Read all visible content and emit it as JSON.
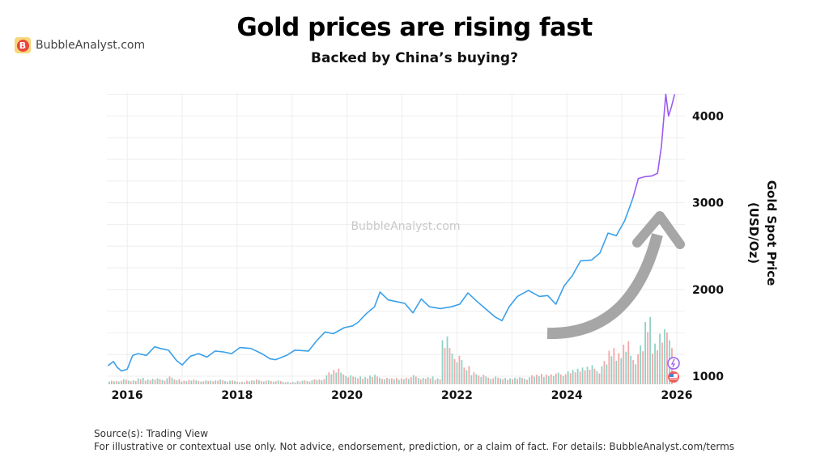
{
  "header": {
    "title": "Gold prices are rising fast",
    "subtitle": "Backed by China’s buying?"
  },
  "logo": {
    "text": "BubbleAnalyst.com",
    "letter": "B"
  },
  "watermark": "BubbleAnalyst.com",
  "footer": {
    "source": "Source(s): Trading View",
    "disclaimer": "For illustrative or contextual use only. Not advice, endorsement, prediction, or a claim of fact. For details: BubbleAnalyst.com/terms"
  },
  "chart_data": {
    "type": "line",
    "title": "Gold prices are rising fast",
    "ylabel_line1": "Gold Spot Price",
    "ylabel_line2": "(USD/Oz)",
    "xlim": [
      2015.63,
      2026.0
    ],
    "ylim": [
      900,
      4300
    ],
    "x_ticks": [
      "2016",
      "2018",
      "2020",
      "2022",
      "2024",
      "2026"
    ],
    "y_ticks": [
      "1000",
      "2000",
      "3000",
      "4000"
    ],
    "grid": true,
    "colors": {
      "line": "#3aa0ea",
      "line_recent": "#9b5cf0",
      "vol_up": "#8fd3c6",
      "vol_down": "#f4a7a7",
      "arrow": "#a6a6a6",
      "grid": "#eeeeee"
    },
    "recent_color_from": 2025.2,
    "series": [
      {
        "x": [
          2015.65,
          2015.75,
          2015.82,
          2015.9,
          2016.0,
          2016.1,
          2016.2,
          2016.35,
          2016.5,
          2016.6,
          2016.75,
          2016.9,
          2017.0,
          2017.15,
          2017.3,
          2017.45,
          2017.6,
          2017.75,
          2017.9,
          2018.05,
          2018.25,
          2018.45,
          2018.6,
          2018.7,
          2018.9,
          2019.05,
          2019.3,
          2019.45,
          2019.6,
          2019.75,
          2019.95,
          2020.1,
          2020.2,
          2020.35,
          2020.5,
          2020.6,
          2020.75,
          2020.9,
          2021.05,
          2021.2,
          2021.35,
          2021.5,
          2021.7,
          2021.9,
          2022.05,
          2022.2,
          2022.35,
          2022.55,
          2022.7,
          2022.82,
          2022.95,
          2023.1,
          2023.3,
          2023.5,
          2023.65,
          2023.8,
          2023.95,
          2024.1,
          2024.25,
          2024.45,
          2024.6,
          2024.75,
          2024.9,
          2025.05,
          2025.2,
          2025.3,
          2025.42,
          2025.55,
          2025.65,
          2025.72,
          2025.8,
          2025.85,
          2025.9,
          2025.96
        ],
        "y": [
          1120,
          1170,
          1100,
          1060,
          1080,
          1240,
          1260,
          1240,
          1340,
          1320,
          1300,
          1180,
          1130,
          1230,
          1260,
          1220,
          1290,
          1280,
          1260,
          1330,
          1320,
          1260,
          1200,
          1190,
          1240,
          1300,
          1290,
          1410,
          1510,
          1490,
          1560,
          1580,
          1620,
          1720,
          1800,
          1970,
          1880,
          1860,
          1840,
          1730,
          1890,
          1800,
          1780,
          1800,
          1830,
          1960,
          1870,
          1760,
          1680,
          1640,
          1800,
          1920,
          1990,
          1920,
          1930,
          1830,
          2040,
          2160,
          2330,
          2340,
          2420,
          2650,
          2620,
          2790,
          3050,
          3280,
          3300,
          3310,
          3340,
          3650,
          4250,
          4000,
          4100,
          4250
        ]
      }
    ],
    "volume_relative": [
      3,
      3,
      4,
      3,
      5,
      4,
      5,
      4,
      6,
      4,
      3,
      4,
      3,
      3,
      3,
      4,
      3,
      3,
      2,
      3,
      4,
      3,
      3,
      3,
      2,
      2,
      3,
      3,
      4,
      4,
      10,
      13,
      9,
      7,
      6,
      6,
      8,
      6,
      5,
      5,
      5,
      6,
      7,
      5,
      6,
      5,
      40,
      28,
      22,
      14,
      10,
      8,
      6,
      6,
      5,
      5,
      6,
      5,
      7,
      8,
      8,
      9,
      9,
      10,
      12,
      14,
      16,
      12,
      18,
      28,
      26,
      36,
      22,
      30,
      52,
      34,
      46,
      40
    ]
  }
}
